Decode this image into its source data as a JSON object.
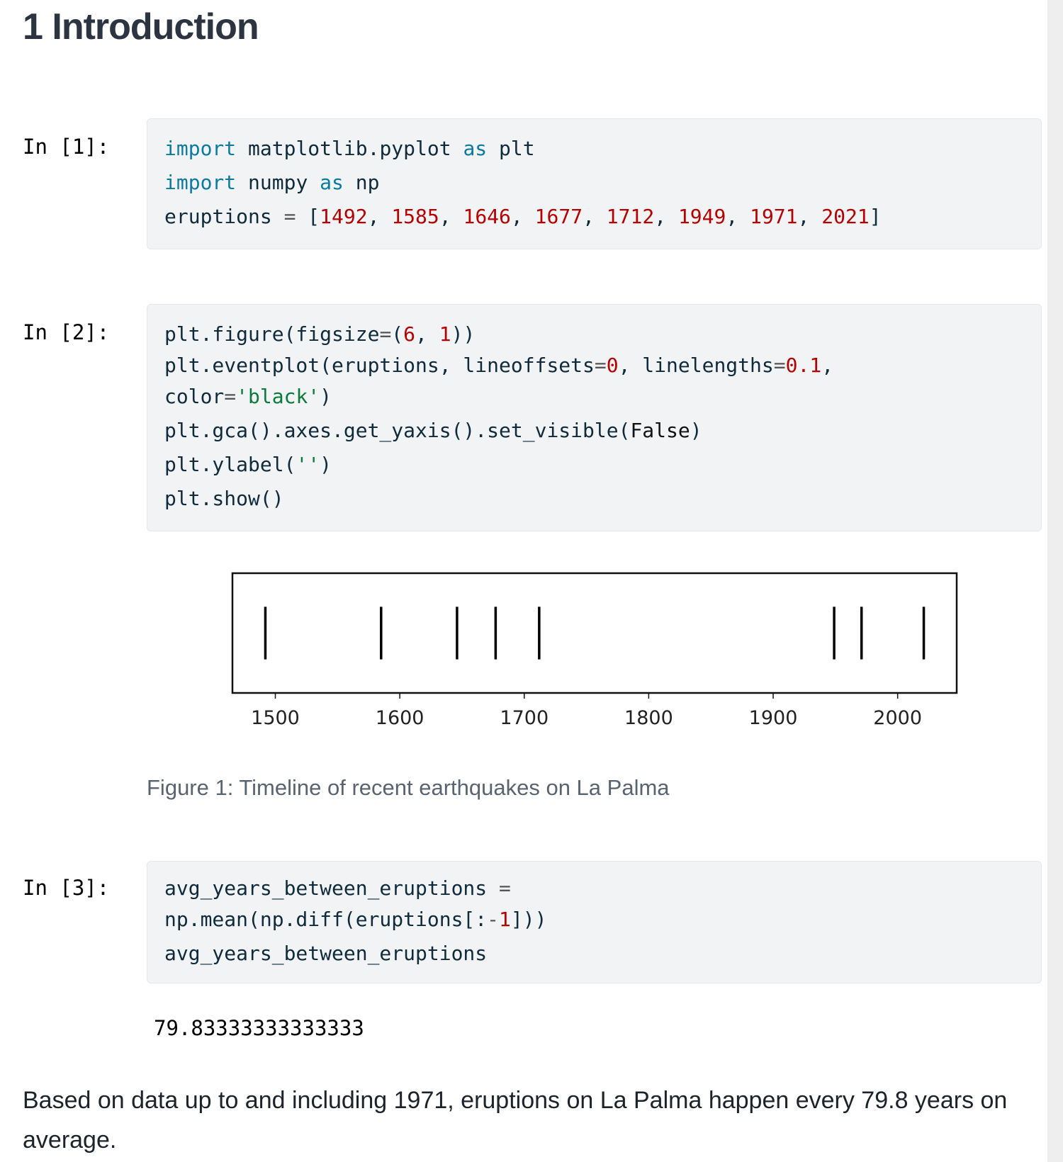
{
  "heading": "1 Introduction",
  "cells": [
    {
      "prompt": "In [1]:",
      "lines": [
        [
          {
            "t": "import",
            "c": "kw"
          },
          {
            "t": " matplotlib.pyplot "
          },
          {
            "t": "as",
            "c": "kw"
          },
          {
            "t": " plt"
          }
        ],
        [
          {
            "t": "import",
            "c": "kw"
          },
          {
            "t": " numpy "
          },
          {
            "t": "as",
            "c": "kw"
          },
          {
            "t": " np"
          }
        ],
        [
          {
            "t": "eruptions "
          },
          {
            "t": "=",
            "c": "op"
          },
          {
            "t": " ["
          },
          {
            "t": "1492",
            "c": "num"
          },
          {
            "t": ", "
          },
          {
            "t": "1585",
            "c": "num"
          },
          {
            "t": ", "
          },
          {
            "t": "1646",
            "c": "num"
          },
          {
            "t": ", "
          },
          {
            "t": "1677",
            "c": "num"
          },
          {
            "t": ", "
          },
          {
            "t": "1712",
            "c": "num"
          },
          {
            "t": ", "
          },
          {
            "t": "1949",
            "c": "num"
          },
          {
            "t": ", "
          },
          {
            "t": "1971",
            "c": "num"
          },
          {
            "t": ", "
          },
          {
            "t": "2021",
            "c": "num"
          },
          {
            "t": "]"
          }
        ]
      ]
    },
    {
      "prompt": "In [2]:",
      "lines": [
        [
          {
            "t": "plt.figure(figsize"
          },
          {
            "t": "=",
            "c": "op"
          },
          {
            "t": "("
          },
          {
            "t": "6",
            "c": "num"
          },
          {
            "t": ", "
          },
          {
            "t": "1",
            "c": "num"
          },
          {
            "t": "))"
          }
        ],
        [
          {
            "t": "plt.eventplot(eruptions, lineoffsets"
          },
          {
            "t": "=",
            "c": "op"
          },
          {
            "t": "0",
            "c": "num"
          },
          {
            "t": ", linelengths"
          },
          {
            "t": "=",
            "c": "op"
          },
          {
            "t": "0.1",
            "c": "num"
          },
          {
            "t": ","
          }
        ],
        [
          {
            "t": "color"
          },
          {
            "t": "=",
            "c": "op"
          },
          {
            "t": "'black'",
            "c": "str"
          },
          {
            "t": ")"
          }
        ],
        [
          {
            "t": "plt.gca().axes.get_yaxis().set_visible("
          },
          {
            "t": "False",
            "c": "bi"
          },
          {
            "t": ")"
          }
        ],
        [
          {
            "t": "plt.ylabel("
          },
          {
            "t": "''",
            "c": "str"
          },
          {
            "t": ")"
          }
        ],
        [
          {
            "t": "plt.show()"
          }
        ]
      ]
    },
    {
      "prompt": "In [3]:",
      "lines": [
        [
          {
            "t": "avg_years_between_eruptions "
          },
          {
            "t": "=",
            "c": "op"
          }
        ],
        [
          {
            "t": "np.mean(np.diff(eruptions[:"
          },
          {
            "t": "-",
            "c": "op"
          },
          {
            "t": "1",
            "c": "num"
          },
          {
            "t": "]))"
          }
        ],
        [
          {
            "t": "avg_years_between_eruptions"
          }
        ]
      ]
    }
  ],
  "chart_data": {
    "type": "eventplot",
    "x": [
      1492,
      1585,
      1646,
      1677,
      1712,
      1949,
      1971,
      2021
    ],
    "lineoffset": 0,
    "linelength": 0.1,
    "color": "#000000",
    "xlim": [
      1465.55,
      2047.45
    ],
    "xticks": [
      "1500",
      "1600",
      "1700",
      "1800",
      "1900",
      "2000"
    ],
    "yaxis_visible": false,
    "grid": false
  },
  "caption": "Figure 1: Timeline of recent earthquakes on La Palma",
  "output": "79.83333333333333",
  "paragraph": "Based on data up to and including 1971, eruptions on La Palma happen every 79.8 years on average."
}
